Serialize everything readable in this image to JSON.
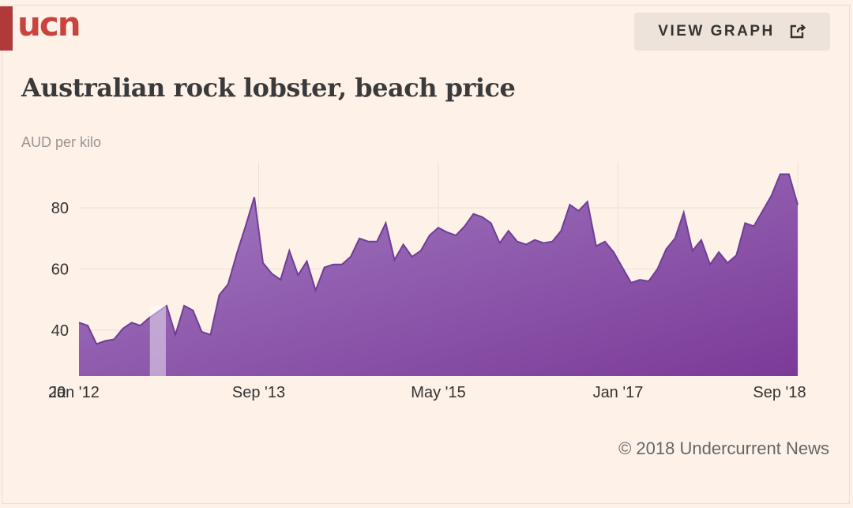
{
  "logo": {
    "text": "ucn"
  },
  "header": {
    "view_graph_label": "VIEW GRAPH",
    "icon": "external-link-icon"
  },
  "subtitle": "AUD per kilo",
  "source": "© 2018 Undercurrent News",
  "colors": {
    "accent": "#b03a3a",
    "area_top": "#a07ac0",
    "area_bottom": "#7a3a98",
    "line": "#6e3f95"
  },
  "chart_data": {
    "type": "area",
    "title": "Australian rock lobster, beach price",
    "ylabel": "AUD per kilo",
    "xlabel": "",
    "ylim": [
      25,
      95
    ],
    "yticks": [
      40,
      60,
      80
    ],
    "baseline_tick_label": "20",
    "x_tick_labels": [
      "Jan '12",
      "Sep '13",
      "May '15",
      "Jan '17",
      "Sep '18"
    ],
    "x_range": [
      "Jan '12",
      "Sep '18"
    ],
    "grid": true,
    "series": [
      {
        "values": [
          42.5,
          41.5,
          35.5,
          36.5,
          37,
          40.5,
          42.5,
          41.5,
          44,
          46,
          48,
          38.5,
          48,
          46.5,
          39.5,
          38.5,
          51.5,
          55,
          65,
          74,
          83.5,
          62,
          58.5,
          56.5,
          66,
          58,
          62.5,
          53,
          60.5,
          61.5,
          61.5,
          64,
          70,
          69,
          69,
          75,
          63,
          68,
          64,
          66,
          71,
          73.5,
          72,
          71,
          74,
          78,
          77,
          75,
          68.5,
          72.5,
          69,
          68,
          69.5,
          68.5,
          69,
          72.5,
          81,
          79,
          82,
          67.5,
          69,
          65.5,
          60.5,
          55.5,
          56.5,
          56,
          60,
          66.5,
          70,
          78.5,
          66,
          69.5,
          61.5,
          65.5,
          62,
          64.5,
          75,
          74,
          79,
          84,
          91,
          91,
          81
        ]
      }
    ],
    "highlight_band": {
      "start_index": 8,
      "end_index": 10
    }
  }
}
